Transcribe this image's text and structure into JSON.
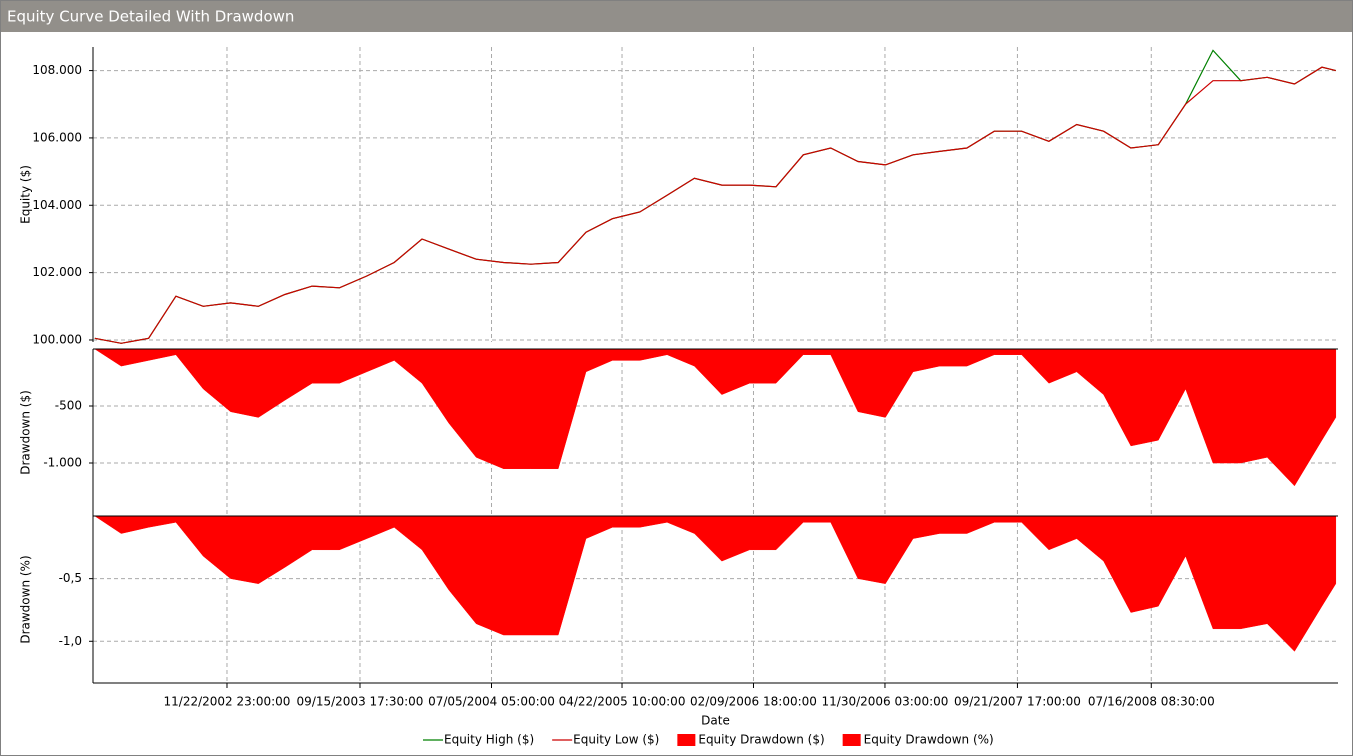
{
  "chart_data": [
    {
      "type": "line",
      "title": "Equity Curve Detailed With Drawdown",
      "ylabel": "Equity ($)",
      "x": [
        "02/01/2002 00:00:00",
        "04/01/2002 00:00:00",
        "06/01/2002 00:00:00",
        "08/01/2002 00:00:00",
        "10/01/2002 00:00:00",
        "12/01/2002 00:00:00",
        "02/01/2003 00:00:00",
        "04/01/2003 00:00:00",
        "06/01/2003 00:00:00",
        "08/01/2003 00:00:00",
        "10/01/2003 00:00:00",
        "12/01/2003 00:00:00",
        "02/01/2004 00:00:00",
        "04/01/2004 00:00:00",
        "06/01/2004 00:00:00",
        "08/01/2004 00:00:00",
        "10/01/2004 00:00:00",
        "12/01/2004 00:00:00",
        "02/01/2005 00:00:00",
        "04/01/2005 00:00:00",
        "06/01/2005 00:00:00",
        "08/01/2005 00:00:00",
        "10/01/2005 00:00:00",
        "12/01/2005 00:00:00",
        "02/01/2006 00:00:00",
        "04/01/2006 00:00:00",
        "06/01/2006 00:00:00",
        "08/01/2006 00:00:00",
        "10/01/2006 00:00:00",
        "12/01/2006 00:00:00",
        "02/01/2007 00:00:00",
        "04/01/2007 00:00:00",
        "06/01/2007 00:00:00",
        "08/01/2007 00:00:00",
        "10/01/2007 00:00:00",
        "12/01/2007 00:00:00",
        "02/01/2008 00:00:00",
        "04/01/2008 00:00:00",
        "06/01/2008 00:00:00",
        "08/01/2008 00:00:00",
        "10/01/2008 00:00:00",
        "12/01/2008 00:00:00",
        "02/01/2009 00:00:00",
        "04/01/2009 00:00:00",
        "06/01/2009 00:00:00",
        "08/01/2009 00:00:00",
        "09/01/2009 00:00:00"
      ],
      "ylim": [
        99940,
        108700
      ],
      "yticks": [
        {
          "value": 100000,
          "label": "100.000"
        },
        {
          "value": 102000,
          "label": "102.000"
        },
        {
          "value": 104000,
          "label": "104.000"
        },
        {
          "value": 106000,
          "label": "106.000"
        },
        {
          "value": 108000,
          "label": "108.000"
        }
      ],
      "grid": true,
      "series": [
        {
          "name": "Equity High ($)",
          "color": "#008000",
          "values": [
            100050,
            99900,
            100050,
            101300,
            101000,
            101100,
            101000,
            101350,
            101600,
            101550,
            101900,
            102300,
            103000,
            102700,
            102400,
            102300,
            102250,
            102300,
            103200,
            103600,
            103800,
            104300,
            104800,
            104600,
            104600,
            104550,
            105500,
            105700,
            105300,
            105200,
            105500,
            105600,
            105700,
            106200,
            106200,
            105900,
            106400,
            106200,
            105700,
            105800,
            107000,
            108600,
            107700,
            107800,
            107600,
            108100,
            108000
          ]
        },
        {
          "name": "Equity Low ($)",
          "color": "#cc0000",
          "values": [
            100050,
            99900,
            100050,
            101300,
            101000,
            101100,
            101000,
            101350,
            101600,
            101550,
            101900,
            102300,
            103000,
            102700,
            102400,
            102300,
            102250,
            102300,
            103200,
            103600,
            103800,
            104300,
            104800,
            104600,
            104600,
            104550,
            105500,
            105700,
            105300,
            105200,
            105500,
            105600,
            105700,
            106200,
            106200,
            105900,
            106400,
            106200,
            105700,
            105800,
            107000,
            107700,
            107700,
            107800,
            107600,
            108100,
            108000
          ]
        }
      ]
    },
    {
      "type": "area",
      "ylabel": "Drawdown ($)",
      "x": [
        "02/01/2002 00:00:00",
        "04/01/2002 00:00:00",
        "06/01/2002 00:00:00",
        "08/01/2002 00:00:00",
        "10/01/2002 00:00:00",
        "12/01/2002 00:00:00",
        "02/01/2003 00:00:00",
        "04/01/2003 00:00:00",
        "06/01/2003 00:00:00",
        "08/01/2003 00:00:00",
        "10/01/2003 00:00:00",
        "12/01/2003 00:00:00",
        "02/01/2004 00:00:00",
        "04/01/2004 00:00:00",
        "06/01/2004 00:00:00",
        "08/01/2004 00:00:00",
        "10/01/2004 00:00:00",
        "12/01/2004 00:00:00",
        "02/01/2005 00:00:00",
        "04/01/2005 00:00:00",
        "06/01/2005 00:00:00",
        "08/01/2005 00:00:00",
        "10/01/2005 00:00:00",
        "12/01/2005 00:00:00",
        "02/01/2006 00:00:00",
        "04/01/2006 00:00:00",
        "06/01/2006 00:00:00",
        "08/01/2006 00:00:00",
        "10/01/2006 00:00:00",
        "12/01/2006 00:00:00",
        "02/01/2007 00:00:00",
        "04/01/2007 00:00:00",
        "06/01/2007 00:00:00",
        "08/01/2007 00:00:00",
        "10/01/2007 00:00:00",
        "12/01/2007 00:00:00",
        "02/01/2008 00:00:00",
        "04/01/2008 00:00:00",
        "06/01/2008 00:00:00",
        "08/01/2008 00:00:00",
        "10/01/2008 00:00:00",
        "12/01/2008 00:00:00",
        "02/01/2009 00:00:00",
        "04/01/2009 00:00:00",
        "06/01/2009 00:00:00",
        "08/01/2009 00:00:00",
        "09/01/2009 00:00:00"
      ],
      "ylim": [
        -1465,
        0
      ],
      "yticks": [
        -500,
        {
          "value": -1000,
          "label": "-1.000"
        }
      ],
      "grid": true,
      "series": [
        {
          "name": "Equity Drawdown ($)",
          "color": "#ff0000",
          "values": [
            0,
            -150,
            -100,
            -50,
            -350,
            -550,
            -600,
            -450,
            -300,
            -300,
            -200,
            -100,
            -300,
            -650,
            -950,
            -1050,
            -1050,
            -1050,
            -200,
            -100,
            -100,
            -50,
            -150,
            -400,
            -300,
            -300,
            -50,
            -50,
            -550,
            -600,
            -200,
            -150,
            -150,
            -50,
            -50,
            -300,
            -200,
            -400,
            -850,
            -800,
            -350,
            -1000,
            -1000,
            -950,
            -1200,
            -800,
            -600
          ]
        }
      ]
    },
    {
      "type": "area",
      "ylabel": "Drawdown (%)",
      "xlabel": "Date",
      "x": [
        "02/01/2002 00:00:00",
        "04/01/2002 00:00:00",
        "06/01/2002 00:00:00",
        "08/01/2002 00:00:00",
        "10/01/2002 00:00:00",
        "12/01/2002 00:00:00",
        "02/01/2003 00:00:00",
        "04/01/2003 00:00:00",
        "06/01/2003 00:00:00",
        "08/01/2003 00:00:00",
        "10/01/2003 00:00:00",
        "12/01/2003 00:00:00",
        "02/01/2004 00:00:00",
        "04/01/2004 00:00:00",
        "06/01/2004 00:00:00",
        "08/01/2004 00:00:00",
        "10/01/2004 00:00:00",
        "12/01/2004 00:00:00",
        "02/01/2005 00:00:00",
        "04/01/2005 00:00:00",
        "06/01/2005 00:00:00",
        "08/01/2005 00:00:00",
        "10/01/2005 00:00:00",
        "12/01/2005 00:00:00",
        "02/01/2006 00:00:00",
        "04/01/2006 00:00:00",
        "06/01/2006 00:00:00",
        "08/01/2006 00:00:00",
        "10/01/2006 00:00:00",
        "12/01/2006 00:00:00",
        "02/01/2007 00:00:00",
        "04/01/2007 00:00:00",
        "06/01/2007 00:00:00",
        "08/01/2007 00:00:00",
        "10/01/2007 00:00:00",
        "12/01/2007 00:00:00",
        "02/01/2008 00:00:00",
        "04/01/2008 00:00:00",
        "06/01/2008 00:00:00",
        "08/01/2008 00:00:00",
        "10/01/2008 00:00:00",
        "12/01/2008 00:00:00",
        "02/01/2009 00:00:00",
        "04/01/2009 00:00:00",
        "06/01/2009 00:00:00",
        "08/01/2009 00:00:00",
        "09/01/2009 00:00:00"
      ],
      "xlim": [
        "01/28/2002 00:00:00",
        "09/06/2009 00:00:00"
      ],
      "xticks": [
        "11/22/2002 23:00:00",
        "09/15/2003 17:30:00",
        "07/05/2004 05:00:00",
        "04/22/2005 10:00:00",
        "02/09/2006 18:00:00",
        "11/30/2006 03:00:00",
        "09/21/2007 17:00:00",
        "07/16/2008 08:30:00"
      ],
      "ylim": [
        -1.333,
        0
      ],
      "yticks": [
        {
          "value": -0.5,
          "label": "-0,5"
        },
        {
          "value": -1,
          "label": "-1,0"
        }
      ],
      "grid": true,
      "series": [
        {
          "name": "Equity Drawdown (%)",
          "color": "#ff0000",
          "values": [
            0,
            -0.14,
            -0.09,
            -0.05,
            -0.32,
            -0.5,
            -0.54,
            -0.41,
            -0.27,
            -0.27,
            -0.18,
            -0.09,
            -0.27,
            -0.59,
            -0.86,
            -0.95,
            -0.95,
            -0.95,
            -0.18,
            -0.09,
            -0.09,
            -0.05,
            -0.14,
            -0.36,
            -0.27,
            -0.27,
            -0.05,
            -0.05,
            -0.5,
            -0.54,
            -0.18,
            -0.14,
            -0.14,
            -0.05,
            -0.05,
            -0.27,
            -0.18,
            -0.36,
            -0.77,
            -0.72,
            -0.32,
            -0.9,
            -0.9,
            -0.86,
            -1.08,
            -0.72,
            -0.54
          ]
        }
      ]
    }
  ]
}
